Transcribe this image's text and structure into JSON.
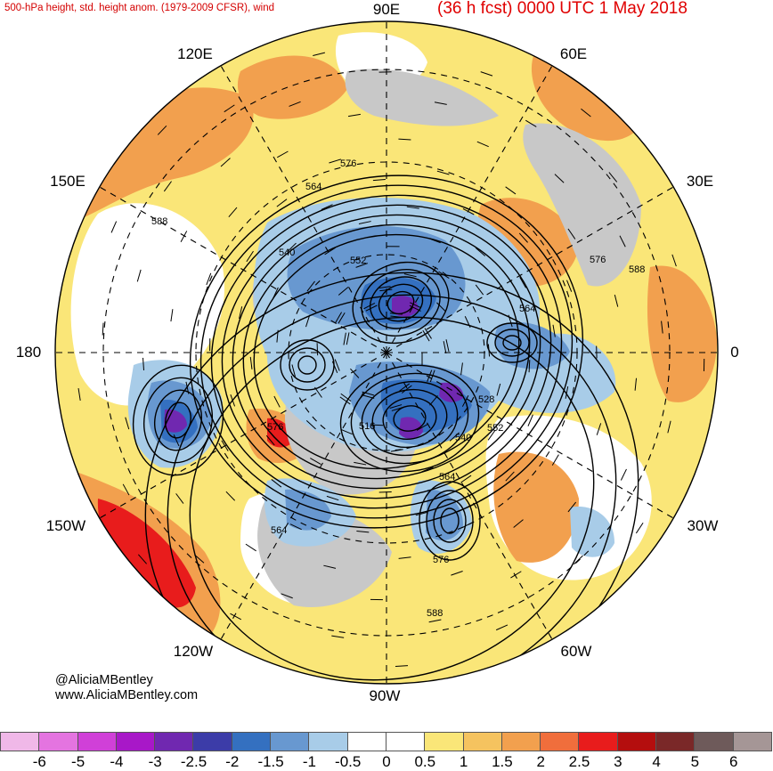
{
  "header": {
    "left_title": "500-hPa height, std. height anom. (1979-2009 CFSR), wind",
    "right_title": "(36 h fcst) 0000 UTC 1 May 2018"
  },
  "longitudes": {
    "top": "90E",
    "top_right": "60E",
    "upper_right": "30E",
    "right": "0",
    "lower_right": "30W",
    "bottom_right": "60W",
    "bottom": "90W",
    "bottom_left": "120W",
    "lower_left": "150W",
    "left": "180",
    "upper_left": "150E",
    "top_left": "120E"
  },
  "contour_labels": [
    "576",
    "564",
    "588",
    "540",
    "552",
    "564",
    "576",
    "588",
    "516",
    "528",
    "540",
    "552",
    "576",
    "564",
    "564",
    "576",
    "588"
  ],
  "credits": {
    "twitter": "@AliciaMBentley",
    "website": "www.AliciaMBentley.com"
  },
  "colorbar": {
    "colors": [
      "#f0b8e8",
      "#e474e0",
      "#d040d8",
      "#a818c8",
      "#7028b0",
      "#3c3ca8",
      "#3470c0",
      "#6898d0",
      "#a8cce8",
      "#ffffff",
      "#ffffff",
      "#fae678",
      "#f5c35f",
      "#f2a04e",
      "#f06e3c",
      "#e81c1c",
      "#b40e0e",
      "#7a2828",
      "#6e5a5a",
      "#a59696"
    ],
    "ticks": [
      "-6",
      "-5",
      "-4",
      "-3",
      "-2.5",
      "-2",
      "-1.5",
      "-1",
      "-0.5",
      "0",
      "0.5",
      "1",
      "1.5",
      "2",
      "2.5",
      "3",
      "4",
      "5",
      "6"
    ]
  },
  "palette": {
    "ocean_white": "#ffffff",
    "weak_pos": "#fae678",
    "mod_pos": "#f5c35f",
    "strong_pos": "#f2a04e",
    "vstrong_pos": "#f06e3c",
    "extreme_pos": "#e81c1c",
    "weak_neg": "#a8cce8",
    "mod_neg": "#6898d0",
    "strong_neg": "#3470c0",
    "vstrong_neg": "#3c3ca8",
    "extreme_neg": "#7028b0",
    "terrain_gray": "#c8c8c8"
  }
}
